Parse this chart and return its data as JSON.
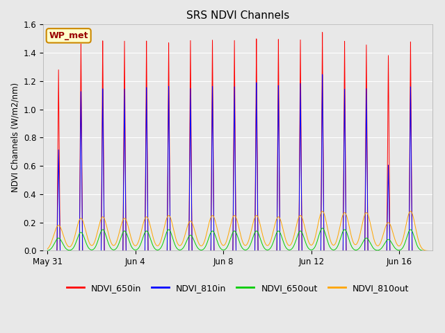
{
  "title": "SRS NDVI Channels",
  "ylabel": "NDVI Channels (W/m2/nm)",
  "ylim": [
    0.0,
    1.6
  ],
  "yticks": [
    0.0,
    0.2,
    0.4,
    0.6,
    0.8,
    1.0,
    1.2,
    1.4,
    1.6
  ],
  "colors": {
    "NDVI_650in": "#ff0000",
    "NDVI_810in": "#0000ff",
    "NDVI_650out": "#00cc00",
    "NDVI_810out": "#ffa500"
  },
  "legend_label": "WP_met",
  "legend_box_color": "#ffffcc",
  "legend_box_edge": "#cc8800",
  "fig_bg_color": "#e8e8e8",
  "plot_bg_color": "#e8e8e8",
  "x_ticks_labels": [
    "May 31",
    "Jun 4",
    "Jun 8",
    "Jun 12",
    "Jun 16"
  ],
  "x_ticks_pos": [
    0,
    4,
    8,
    12,
    16
  ],
  "total_days": 17.5,
  "heights_650in": [
    1.29,
    1.48,
    1.49,
    1.49,
    1.49,
    1.48,
    1.49,
    1.5,
    1.5,
    1.5,
    1.51,
    1.5,
    1.55,
    1.49,
    1.46,
    1.39,
    1.49
  ],
  "heights_810in": [
    0.72,
    1.14,
    1.15,
    1.15,
    1.16,
    1.17,
    1.15,
    1.17,
    1.17,
    1.19,
    1.18,
    1.19,
    1.25,
    1.15,
    1.15,
    0.61,
    1.17
  ],
  "heights_650out": [
    0.09,
    0.13,
    0.15,
    0.14,
    0.14,
    0.15,
    0.11,
    0.14,
    0.14,
    0.14,
    0.14,
    0.14,
    0.16,
    0.15,
    0.09,
    0.08,
    0.15
  ],
  "heights_810out": [
    0.18,
    0.23,
    0.24,
    0.23,
    0.24,
    0.25,
    0.21,
    0.25,
    0.25,
    0.25,
    0.24,
    0.25,
    0.28,
    0.27,
    0.27,
    0.2,
    0.28
  ],
  "peak_offsets": [
    0.5,
    0.52,
    0.51,
    0.5,
    0.5,
    0.51,
    0.5,
    0.5,
    0.5,
    0.5,
    0.5,
    0.5,
    0.5,
    0.51,
    0.5,
    0.5,
    0.51
  ]
}
